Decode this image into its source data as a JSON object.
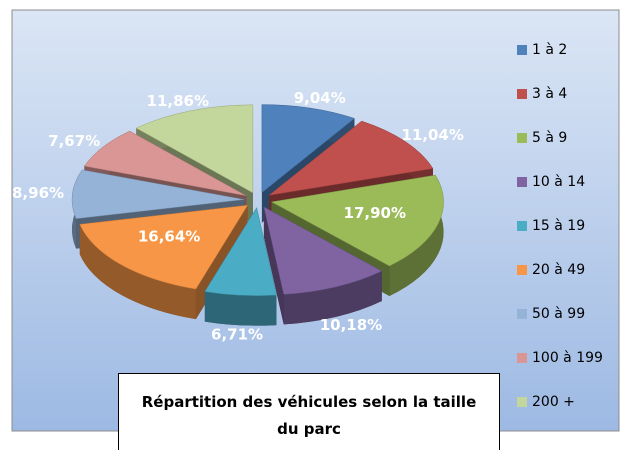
{
  "chart_data": {
    "type": "pie",
    "title": "Répartition des véhicules selon la taille du parc",
    "categories": [
      "1 à 2",
      "3 à 4",
      "5 à 9",
      "10 à 14",
      "15 à 19",
      "20 à 49",
      "50 à 99",
      "100 à 199",
      "200 +"
    ],
    "values": [
      9.04,
      11.04,
      17.9,
      10.18,
      6.71,
      16.64,
      8.96,
      7.67,
      11.86
    ],
    "value_labels": [
      "9,04%",
      "11,04%",
      "17,90%",
      "10,18%",
      "6,71%",
      "16,64%",
      "8,96%",
      "7,67%",
      "11,86%"
    ],
    "colors": [
      "#4f81bd",
      "#c0504d",
      "#9bbb59",
      "#8064a2",
      "#4bacc6",
      "#f79646",
      "#95b3d7",
      "#d99694",
      "#c3d69b"
    ],
    "legend": "right"
  }
}
